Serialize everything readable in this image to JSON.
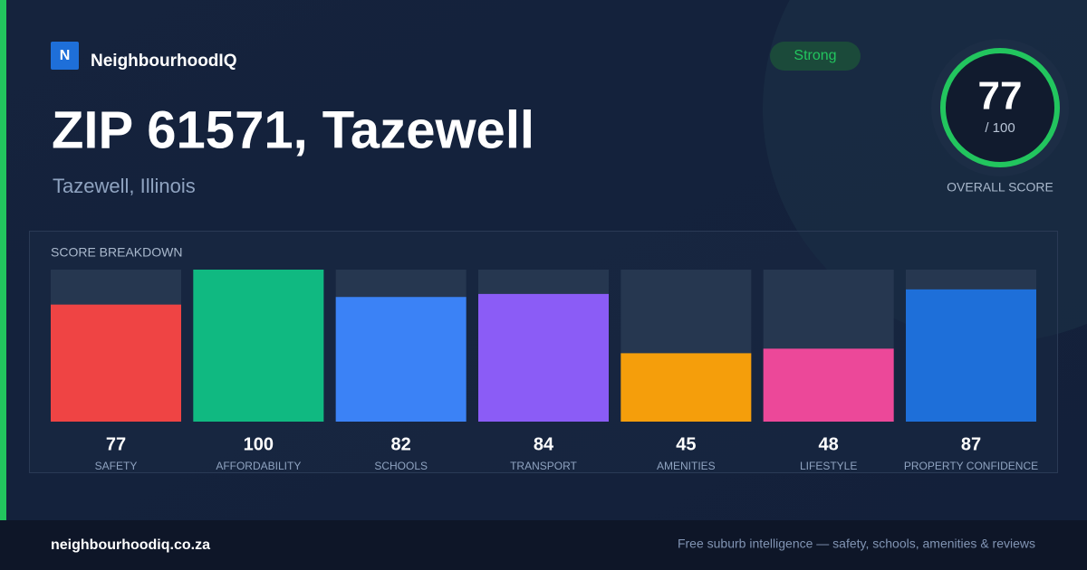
{
  "brand": {
    "logo": "N",
    "name": "NeighbourhoodIQ"
  },
  "title": "ZIP 61571, Tazewell",
  "subtitle": "Tazewell, Illinois",
  "badge": "Strong",
  "overall": {
    "score": 77,
    "max_label": "/ 100",
    "label": "OVERALL SCORE"
  },
  "chart_data": {
    "type": "bar",
    "title": "SCORE BREAKDOWN",
    "categories": [
      "SAFETY",
      "AFFORDABILITY",
      "SCHOOLS",
      "TRANSPORT",
      "AMENITIES",
      "LIFESTYLE",
      "PROPERTY CONFIDENCE"
    ],
    "values": [
      77,
      100,
      82,
      84,
      45,
      48,
      87
    ],
    "colors": [
      "#ef4444",
      "#10b981",
      "#3b82f6",
      "#8b5cf6",
      "#f59e0b",
      "#ec4899",
      "#1e6fd9"
    ],
    "ylim": [
      0,
      100
    ]
  },
  "footer": {
    "site": "neighbourhoodiq.co.za",
    "tagline": "Free suburb intelligence — safety, schools, amenities & reviews"
  }
}
